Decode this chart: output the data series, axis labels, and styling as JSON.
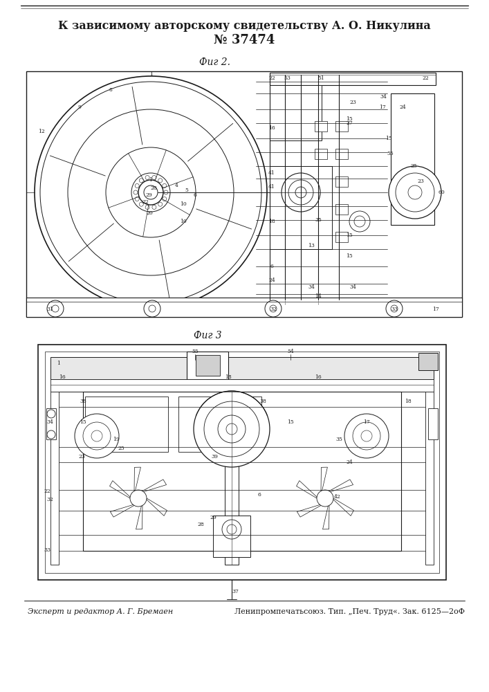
{
  "title_line1": "К зависимому авторскому свидетельству А. О. Никулина",
  "title_line2": "№ 37474",
  "fig2_label": "Фиг 2.",
  "fig3_label": "Фиг 3",
  "footer_left": "Эксперт и редактор А. Г. Бремаен",
  "footer_right": "Ленипромпечатьсоюз. Тип. „Печ. Труд«. Зак. 6125—2оФ",
  "bg_color": "#ffffff",
  "line_color": "#1a1a1a",
  "gray_fill": "#e8e8e8",
  "light_gray": "#d0d0d0"
}
